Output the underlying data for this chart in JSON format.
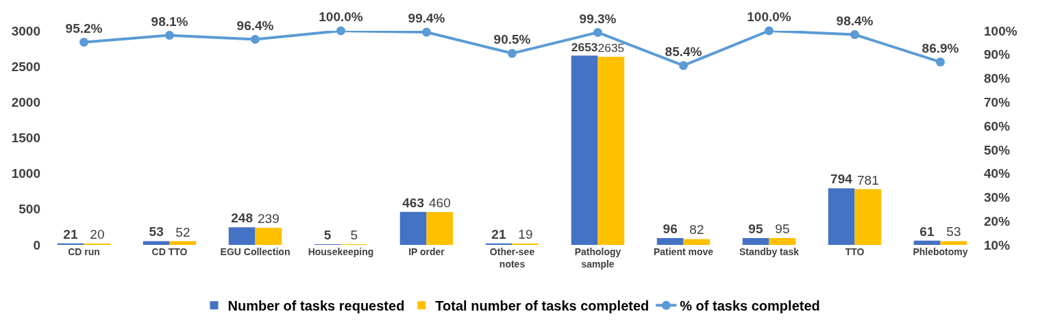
{
  "chart_data": {
    "type": "bar",
    "categories": [
      "CD run",
      "CD TTO",
      "EGU Collection",
      "Housekeeping",
      "IP order",
      "Other-see notes",
      "Pathology sample",
      "Patient move",
      "Standby task",
      "TTO",
      "Phlebotomy"
    ],
    "series": [
      {
        "name": "Number of tasks requested",
        "color": "#4472c4",
        "values": [
          21,
          53,
          248,
          5,
          463,
          21,
          2653,
          96,
          95,
          794,
          61
        ],
        "value_labels": [
          "21",
          "53",
          "248",
          "5",
          "463",
          "21",
          "2653",
          "96",
          "95",
          "794",
          "61"
        ]
      },
      {
        "name": "Total number of tasks completed",
        "color": "#ffc000",
        "values": [
          20,
          52,
          239,
          5,
          460,
          19,
          2635,
          82,
          95,
          781,
          53
        ],
        "value_labels": [
          "20",
          "52",
          "239",
          "5",
          "460",
          "19",
          "2635",
          "82",
          "95",
          "781",
          "53"
        ]
      },
      {
        "name": "% of tasks completed",
        "type": "line",
        "axis": "y2",
        "color": "#5b9bd5",
        "values": [
          95.2,
          98.1,
          96.4,
          100.0,
          99.4,
          90.5,
          99.3,
          85.4,
          100.0,
          98.4,
          86.9
        ],
        "value_labels": [
          "95.2%",
          "98.1%",
          "96.4%",
          "100.0%",
          "99.4%",
          "90.5%",
          "99.3%",
          "85.4%",
          "100.0%",
          "98.4%",
          "86.9%"
        ]
      }
    ],
    "ylim": [
      0,
      3000
    ],
    "yticks": [
      0,
      500,
      1000,
      1500,
      2000,
      2500,
      3000
    ],
    "y2lim": [
      10,
      100
    ],
    "y2ticks": [
      {
        "value": 10,
        "label": "10%"
      },
      {
        "value": 20,
        "label": "20%"
      },
      {
        "value": 30,
        "label": "30%"
      },
      {
        "value": 40,
        "label": "40%"
      },
      {
        "value": 50,
        "label": "50%"
      },
      {
        "value": 60,
        "label": "60%"
      },
      {
        "value": 70,
        "label": "70%"
      },
      {
        "value": 80,
        "label": "80%"
      },
      {
        "value": 90,
        "label": "90%"
      },
      {
        "value": 100,
        "label": "100%"
      }
    ],
    "grid": false,
    "legend": "bottom",
    "marker": "circle",
    "line_style": "solid"
  }
}
